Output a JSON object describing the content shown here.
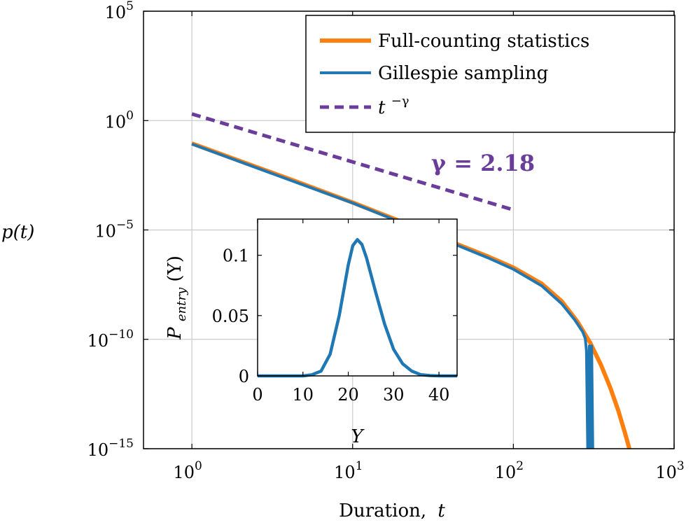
{
  "chart_data": [
    {
      "type": "line",
      "xlabel_text": "Duration,",
      "xlabel_var": "t",
      "ylabel": "p(t)",
      "xscale": "log",
      "yscale": "log",
      "xlim": [
        0.5,
        1000
      ],
      "ylim": [
        1e-15,
        100000.0
      ],
      "grid": true,
      "legend_position": "top-right",
      "x_ticks": [
        {
          "value": 1,
          "base": "10",
          "exp": "0"
        },
        {
          "value": 10,
          "base": "10",
          "exp": "1"
        },
        {
          "value": 100,
          "base": "10",
          "exp": "2"
        },
        {
          "value": 1000,
          "base": "10",
          "exp": "3"
        }
      ],
      "y_ticks": [
        {
          "value": 100000.0,
          "base": "10",
          "exp": "5"
        },
        {
          "value": 1,
          "base": "10",
          "exp": "0"
        },
        {
          "value": 1e-05,
          "base": "10",
          "exp": "−5"
        },
        {
          "value": 1e-10,
          "base": "10",
          "exp": "−10"
        },
        {
          "value": 1e-15,
          "base": "10",
          "exp": "−15"
        }
      ],
      "series": [
        {
          "name": "Full-counting statistics",
          "color": "#ff7f0e",
          "x": [
            1,
            2,
            4,
            10,
            20,
            40,
            70,
            100,
            150,
            200,
            250,
            300,
            350,
            400,
            450,
            500,
            540
          ],
          "y": [
            0.09,
            0.014,
            0.0022,
            0.00018,
            2.4e-05,
            3.1e-06,
            6e-07,
            1.9e-07,
            3.5e-08,
            5.5e-09,
            6.5e-10,
            7.2e-11,
            7e-12,
            6.4e-13,
            5.4e-14,
            4e-15,
            5e-16
          ]
        },
        {
          "name": "Gillespie sampling",
          "color": "#1f77b4",
          "x": [
            1,
            2,
            4,
            10,
            20,
            40,
            70,
            100,
            150,
            200,
            240,
            270,
            280,
            285,
            290,
            295,
            297,
            300,
            305,
            307,
            312
          ],
          "y": [
            0.085,
            0.013,
            0.002,
            0.00017,
            2.2e-05,
            2.8e-06,
            5.2e-07,
            1.6e-07,
            2.8e-08,
            4.2e-09,
            8e-10,
            2.2e-10,
            1.1e-10,
            3e-11,
            1e-15,
            1e-15,
            5e-11,
            1e-15,
            1e-15,
            5e-11,
            1e-15
          ]
        },
        {
          "name": "t^{-γ}",
          "color": "#6a3d9a",
          "dashed": true,
          "x": [
            1,
            100
          ],
          "y": [
            2.0,
            8.3e-05
          ]
        }
      ],
      "legend": {
        "entries": [
          {
            "label": "Full-counting statistics"
          },
          {
            "label": "Gillespie sampling"
          },
          {
            "label_base": "t",
            "label_exp": "−γ"
          }
        ]
      },
      "annotation": {
        "text": "γ = 2.18"
      }
    },
    {
      "type": "line",
      "inset": true,
      "xlabel": "Y",
      "ylabel_main": "P",
      "ylabel_sub": "entry",
      "ylabel_arg": "(Y)",
      "xlim": [
        0,
        44
      ],
      "ylim": [
        0,
        0.13
      ],
      "x_ticks": [
        0,
        10,
        20,
        30,
        40
      ],
      "y_ticks": [
        {
          "value": 0,
          "label": "0"
        },
        {
          "value": 0.05,
          "label": "0.05"
        },
        {
          "value": 0.1,
          "label": "0.1"
        }
      ],
      "series": [
        {
          "color": "#1f77b4",
          "x": [
            0,
            10,
            12,
            14,
            16,
            18,
            20,
            21,
            22,
            23,
            24,
            26,
            28,
            30,
            32,
            34,
            36,
            38,
            40,
            44
          ],
          "y": [
            0,
            0,
            0.001,
            0.004,
            0.018,
            0.05,
            0.092,
            0.108,
            0.113,
            0.109,
            0.098,
            0.07,
            0.043,
            0.022,
            0.01,
            0.004,
            0.001,
            0.0003,
            0,
            0
          ]
        }
      ]
    }
  ]
}
